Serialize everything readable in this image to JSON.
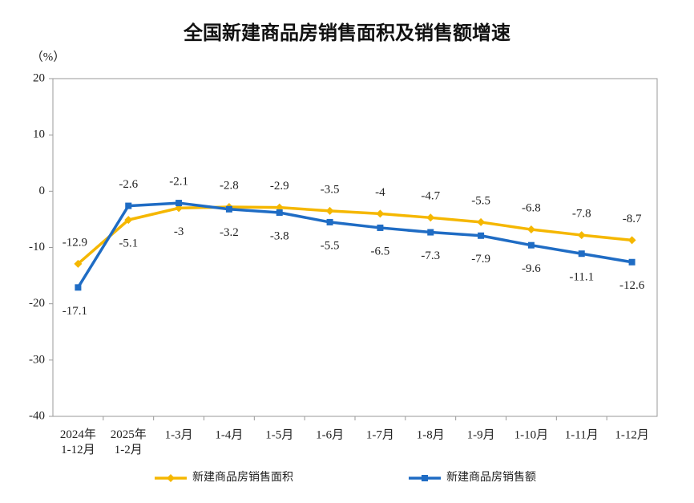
{
  "chart_data": {
    "type": "line",
    "title": "全国新建商品房销售面积及销售额增速",
    "y_label": "（%）",
    "categories": [
      "2024年\n1-12月",
      "2025年\n1-2月",
      "1-3月",
      "1-4月",
      "1-5月",
      "1-6月",
      "1-7月",
      "1-8月",
      "1-9月",
      "1-10月",
      "1-11月",
      "1-12月"
    ],
    "series": [
      {
        "name": "新建商品房销售面积",
        "color": "#f5b700",
        "marker": "diamond",
        "values": [
          -12.9,
          -5.1,
          -3.0,
          -2.8,
          -2.9,
          -3.5,
          -4.0,
          -4.7,
          -5.5,
          -6.8,
          -7.8,
          -8.7
        ]
      },
      {
        "name": "新建商品房销售额",
        "color": "#1f6cc4",
        "marker": "square",
        "values": [
          -17.1,
          -2.6,
          -2.1,
          -3.2,
          -3.8,
          -5.5,
          -6.5,
          -7.3,
          -7.9,
          -9.6,
          -11.1,
          -12.6
        ]
      }
    ],
    "ylim": [
      -40,
      20
    ],
    "yticks": [
      -40,
      -30,
      -20,
      -10,
      0,
      10,
      20
    ],
    "grid": false,
    "legend": "bottom"
  }
}
